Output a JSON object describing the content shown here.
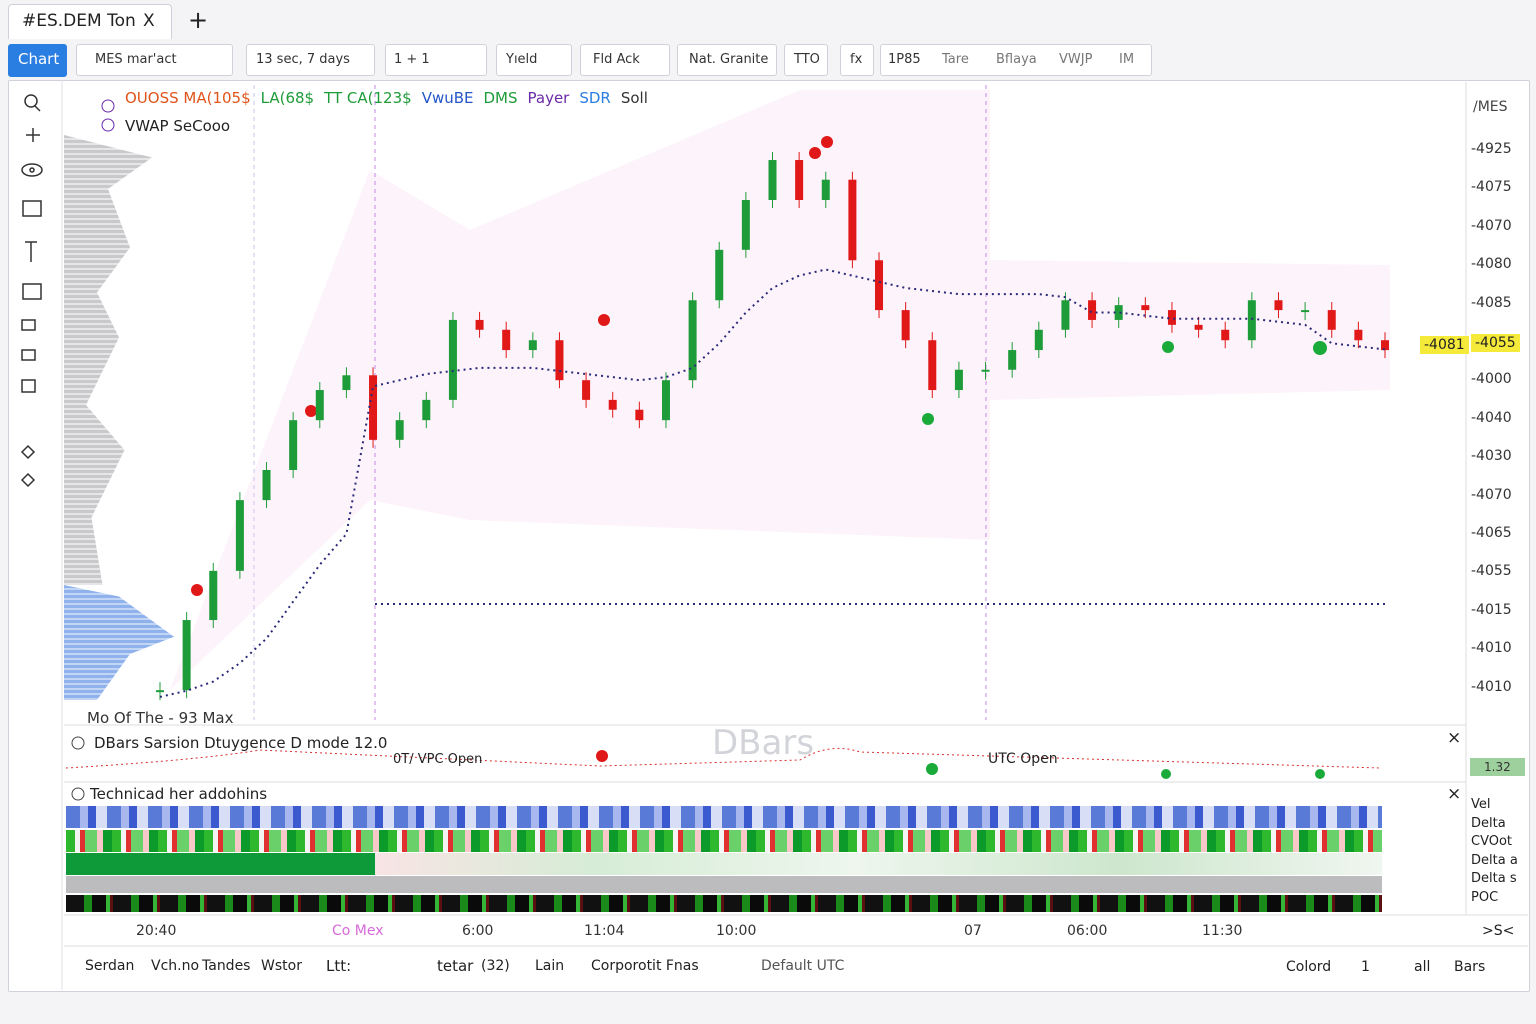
{
  "tab": {
    "title": "#ES.DEM Ton",
    "close": "X",
    "new": "+"
  },
  "toolbar": {
    "chart": "Chart",
    "symbol": "MES mar'act",
    "interval": "13 sec, 7 days",
    "layout": "1 + 1",
    "yield": "Yıeld",
    "field": "Fld Ack",
    "theme": "Nat. Granite",
    "tto": "TTO",
    "fx": "fx",
    "items": [
      "1P85",
      "Tare",
      "Bflaya",
      "VWJP",
      "IM"
    ]
  },
  "legend": {
    "row1": [
      {
        "text": "OUOSS MA(105$",
        "color": "#e0541a"
      },
      {
        "text": "LA(68$",
        "color": "#1e9c3a"
      },
      {
        "text": "TT CA(123$",
        "color": "#1e9c3a"
      },
      {
        "text": "VwuBE",
        "color": "#2456c8"
      },
      {
        "text": "DMS",
        "color": "#1e9c3a"
      },
      {
        "text": "Payer",
        "color": "#6a2aa8"
      },
      {
        "text": "SDR",
        "color": "#2a7de1"
      },
      {
        "text": "Soll",
        "color": "#333333"
      }
    ],
    "row2": "VWAP SeCooo"
  },
  "chart_data": {
    "type": "candlestick",
    "closes": [
      1.6,
      13,
      21,
      32.5,
      37.4,
      45.5,
      50.4,
      52.8,
      42.3,
      45.5,
      48.8,
      61.8,
      60.2,
      56.9,
      58.5,
      52,
      48.8,
      47.2,
      45.5,
      52,
      65,
      73.2,
      81.3,
      87.8,
      81.3,
      84.6,
      71.5,
      63.4,
      58.5,
      50.4,
      53.7,
      53.7,
      56.9,
      60.2,
      65,
      61.8,
      64.2,
      63.4,
      61,
      60.2,
      58.5,
      65,
      63.4,
      63.4,
      60.2,
      58.5,
      56.9
    ],
    "vwap": [
      0.5,
      1.5,
      3,
      6,
      10,
      16,
      22,
      27,
      51,
      52,
      53,
      53.5,
      54,
      54,
      54,
      53.5,
      53,
      52.5,
      52,
      52.5,
      54,
      58,
      63,
      67,
      69,
      70,
      69,
      68,
      67,
      66.5,
      66,
      66,
      66,
      66,
      65.5,
      63,
      63,
      62.5,
      62,
      62,
      62,
      62,
      61.5,
      61,
      58,
      57.5,
      57
    ],
    "ylim": [
      0,
      100
    ],
    "up_color": "#1e9c3a",
    "down_color": "#e01818",
    "vwap_color": "#2a2a7a",
    "axis_title": "/MES",
    "axis_labels": [
      "-4925",
      "-4075",
      "-4070",
      "-4080",
      "-4085",
      {
        "text": "-4055",
        "background": "#f5ea3a"
      },
      "-4000",
      "-4040",
      "-4030",
      "-4070",
      "-4065",
      "-4055",
      "-4015",
      "-4010",
      "-4010"
    ],
    "price_tag": "-4081",
    "volume_label": "Mo Of The - 93 Max"
  },
  "pane2": {
    "title": "DBars Sarsion Dtuygence D mode 12.0",
    "labels": [
      "0T/ VPC Open",
      "UTC Open"
    ],
    "watermark": "DBars",
    "badge": "1.32",
    "close": "×"
  },
  "pane3": {
    "title": "Technicad her addohins",
    "rows": [
      "Vel",
      "Delta",
      "CVOot",
      "Delta a",
      "Delta s",
      "POC"
    ],
    "close": "×"
  },
  "time_axis": [
    "20:40",
    "Co Mex",
    "6:00",
    "11:04",
    "10:00",
    "07",
    "06:00",
    "11:30"
  ],
  "time_axis_end": ">S<",
  "footer": {
    "left": [
      "Serdan",
      "Vch.no",
      "Tandes",
      "Wstor",
      "Ltt:",
      "tetar",
      "(32)",
      "Lain",
      "Corporotit Fnas"
    ],
    "timezone": "Default UTC",
    "right": [
      "Colord",
      "1",
      "all",
      "Bars"
    ]
  }
}
